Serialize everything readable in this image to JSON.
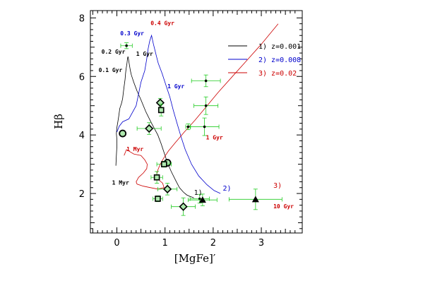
{
  "chart_data": {
    "type": "scatter",
    "xlabel": "[MgFe]′",
    "ylabel": "Hβ",
    "xlim": [
      -0.55,
      3.85
    ],
    "ylim": [
      0.65,
      8.25
    ],
    "xticks": [
      "0",
      "1",
      "2",
      "3"
    ],
    "yticks": [
      "2",
      "4",
      "6",
      "8"
    ],
    "grid": false,
    "legend_position": "top-right",
    "legend": [
      {
        "label": "1) z=0.001",
        "color": "#000000"
      },
      {
        "label": "2) z=0.008",
        "color": "#0000cc"
      },
      {
        "label": "3) z=0.02",
        "color": "#cc0000"
      }
    ],
    "series": [
      {
        "name": "1) z=0.001",
        "color": "#000000",
        "x": [
          -0.02,
          -0.01,
          0.0,
          0.0,
          -0.01,
          0.0,
          0.02,
          0.04,
          0.06,
          0.1,
          0.12,
          0.13,
          0.15,
          0.17,
          0.18,
          0.19,
          0.21,
          0.22,
          0.23,
          0.24,
          0.25,
          0.26,
          0.27,
          0.28,
          0.3,
          0.35,
          0.42,
          0.5,
          0.6,
          0.72,
          0.85,
          0.92,
          0.98,
          1.05,
          1.13,
          1.22,
          1.3,
          1.38,
          1.45,
          1.52,
          1.6
        ],
        "y": [
          2.95,
          3.3,
          3.6,
          3.85,
          4.05,
          4.25,
          4.45,
          4.65,
          4.9,
          5.1,
          5.25,
          5.4,
          5.65,
          5.9,
          6.1,
          6.25,
          6.45,
          6.6,
          6.68,
          6.6,
          6.5,
          6.4,
          6.3,
          6.2,
          6.05,
          5.8,
          5.5,
          5.2,
          4.8,
          4.4,
          4.0,
          3.7,
          3.4,
          3.05,
          2.75,
          2.45,
          2.2,
          2.05,
          1.95,
          1.9,
          1.85
        ]
      },
      {
        "name": "2) z=0.008",
        "color": "#0000cc",
        "x": [
          0.0,
          0.05,
          0.12,
          0.25,
          0.4,
          0.5,
          0.58,
          0.62,
          0.65,
          0.68,
          0.72,
          0.76,
          0.79,
          0.82,
          0.86,
          0.94,
          1.02,
          1.1,
          1.17,
          1.25,
          1.33,
          1.42,
          1.55,
          1.7,
          1.87,
          2.02,
          2.15
        ],
        "y": [
          4.1,
          4.3,
          4.45,
          4.55,
          5.0,
          5.8,
          6.2,
          6.6,
          6.95,
          7.2,
          7.4,
          7.1,
          6.9,
          6.7,
          6.45,
          6.1,
          5.7,
          5.3,
          4.85,
          4.4,
          3.95,
          3.5,
          3.0,
          2.6,
          2.3,
          2.1,
          2.0
        ]
      },
      {
        "name": "3) z=0.02",
        "color": "#cc0000",
        "x": [
          0.15,
          0.2,
          0.35,
          0.5,
          0.58,
          0.63,
          0.62,
          0.55,
          0.45,
          0.4,
          0.42,
          0.55,
          0.7,
          0.85,
          0.98,
          0.95,
          0.88,
          0.82,
          0.85,
          0.9,
          0.97,
          1.07,
          1.22,
          1.4,
          1.62,
          1.85,
          2.1,
          2.4,
          2.7,
          3.0,
          3.35
        ],
        "y": [
          3.3,
          3.5,
          3.35,
          3.3,
          3.15,
          3.0,
          2.85,
          2.7,
          2.55,
          2.4,
          2.32,
          2.25,
          2.2,
          2.15,
          2.2,
          2.35,
          2.45,
          2.6,
          2.8,
          3.0,
          3.2,
          3.45,
          3.75,
          4.1,
          4.5,
          4.95,
          5.45,
          6.0,
          6.55,
          7.1,
          7.8
        ]
      }
    ],
    "observations": [
      {
        "marker": "open-circle",
        "x": 0.12,
        "y": 4.05,
        "xerr": 0.0,
        "yerr": 0.0
      },
      {
        "marker": "open-circle",
        "x": 1.05,
        "y": 3.05,
        "xerr": 0.0,
        "yerr": 0.0
      },
      {
        "marker": "open-diamond",
        "x": 0.9,
        "y": 5.1,
        "xerr": 0.0,
        "yerr": 0.15
      },
      {
        "marker": "open-diamond",
        "x": 0.67,
        "y": 4.22,
        "xerr": 0.25,
        "yerr": 0.2
      },
      {
        "marker": "open-diamond",
        "x": 1.05,
        "y": 2.15,
        "xerr": 0.2,
        "yerr": 0.2
      },
      {
        "marker": "open-diamond",
        "x": 1.38,
        "y": 1.55,
        "xerr": 0.25,
        "yerr": 0.3
      },
      {
        "marker": "open-square",
        "x": 0.92,
        "y": 4.85,
        "xerr": 0.05,
        "yerr": 0.2
      },
      {
        "marker": "open-square",
        "x": 0.98,
        "y": 3.0,
        "xerr": 0.15,
        "yerr": 0.1
      },
      {
        "marker": "open-square",
        "x": 0.83,
        "y": 2.55,
        "xerr": 0.12,
        "yerr": 0.2
      },
      {
        "marker": "open-square",
        "x": 0.85,
        "y": 1.82,
        "xerr": 0.1,
        "yerr": 0.1
      },
      {
        "marker": "dot",
        "x": 0.2,
        "y": 7.05,
        "xerr": 0.12,
        "yerr": 0.1
      },
      {
        "marker": "dot",
        "x": 1.85,
        "y": 5.85,
        "xerr": 0.3,
        "yerr": 0.2
      },
      {
        "marker": "dot",
        "x": 1.85,
        "y": 5.0,
        "xerr": 0.25,
        "yerr": 0.3
      },
      {
        "marker": "dot",
        "x": 1.48,
        "y": 4.28,
        "xerr": 0.05,
        "yerr": 0.1
      },
      {
        "marker": "dot",
        "x": 1.82,
        "y": 4.28,
        "xerr": 0.3,
        "yerr": 0.3
      },
      {
        "marker": "dot",
        "x": 1.72,
        "y": 1.82,
        "xerr": 0.2,
        "yerr": 0.15
      },
      {
        "marker": "filled-triangle",
        "x": 1.78,
        "y": 1.78,
        "xerr": 0.3,
        "yerr": 0.2
      },
      {
        "marker": "filled-triangle",
        "x": 2.88,
        "y": 1.8,
        "xerr": 0.55,
        "yerr": 0.35
      }
    ],
    "annotations": [
      {
        "text": "0.4 Gyr",
        "x": 0.7,
        "y": 7.75,
        "color": "#cc0000"
      },
      {
        "text": "0.3 Gyr",
        "x": 0.07,
        "y": 7.4,
        "color": "#0000cc"
      },
      {
        "text": "0.2 Gyr",
        "x": -0.32,
        "y": 6.78,
        "color": "#000000"
      },
      {
        "text": "0.1 Gyr",
        "x": -0.38,
        "y": 6.15,
        "color": "#000000"
      },
      {
        "text": "1 Gyr",
        "x": 0.4,
        "y": 6.7,
        "color": "#000000"
      },
      {
        "text": "1 Gyr",
        "x": 1.05,
        "y": 5.6,
        "color": "#0000cc"
      },
      {
        "text": "1 Myr",
        "x": 0.2,
        "y": 3.45,
        "color": "#cc0000"
      },
      {
        "text": "1 Myr",
        "x": -0.1,
        "y": 2.3,
        "color": "#000000"
      },
      {
        "text": "1 Gyr",
        "x": 1.85,
        "y": 3.85,
        "color": "#cc0000"
      },
      {
        "text": "10 Gyr",
        "x": 3.25,
        "y": 1.5,
        "color": "#cc0000"
      },
      {
        "text": "1)",
        "x": 1.6,
        "y": 1.95,
        "color": "#000000"
      },
      {
        "text": "2)",
        "x": 2.2,
        "y": 2.1,
        "color": "#0000cc"
      },
      {
        "text": "3)",
        "x": 3.25,
        "y": 2.2,
        "color": "#cc0000"
      }
    ]
  }
}
